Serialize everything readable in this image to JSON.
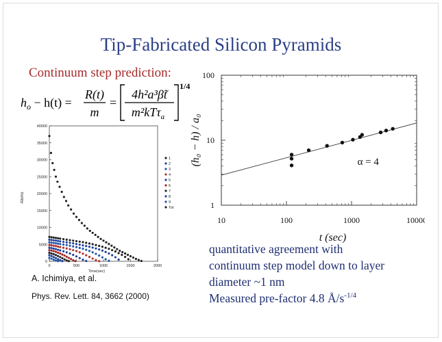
{
  "slide": {
    "title": "Tip-Fabricated Silicon Pyramids",
    "subtitle": "Continuum step prediction:",
    "citation_authors": "A. Ichimiya, et al.",
    "citation_journal": "Phys. Rev. Lett. 84, 3662 (2000)",
    "notes": [
      "quantitative agreement with",
      "continuum step model down to layer",
      "diameter ~1 nm"
    ],
    "prefactor_text": "Measured pre-factor 4.8 Å/s",
    "prefactor_exponent": "-1/4"
  },
  "formula": {
    "lhs": "h",
    "lhs_sub": "o",
    "lhs_rest": " − h(t) =",
    "frac1_num": "R(t)",
    "frac1_den": "m",
    "eq": "=",
    "frac2_num": "4h²a³β̃t",
    "frac2_den": "m²kTτ",
    "frac2_den_sub": "a",
    "exponent": "1/4"
  },
  "chart_data": [
    {
      "type": "scatter",
      "title": "",
      "xlabel": "Time(sec)",
      "ylabel": "Atoms",
      "xlim": [
        0,
        2000
      ],
      "ylim": [
        0,
        40000
      ],
      "x_ticks": [
        "0",
        "500",
        "1000",
        "1500",
        "2000"
      ],
      "y_ticks": [
        "0",
        "5000",
        "10000",
        "15000",
        "20000",
        "25000",
        "30000",
        "35000",
        "40000"
      ],
      "legend": [
        "1",
        "2",
        "3",
        "4",
        "5",
        "6",
        "7",
        "8",
        "9",
        "Tot"
      ],
      "legend_colors": [
        "#222222",
        "#1f3f9a",
        "#2255aa",
        "#b03030",
        "#1f3f9a",
        "#a02828",
        "#222222",
        "#1f3f9a",
        "#2255aa",
        "#222222"
      ],
      "legend_placement": "right",
      "series": [
        {
          "name": "Tot",
          "color": "#222222",
          "x": [
            0,
            30,
            60,
            90,
            120,
            150,
            190,
            230,
            270,
            310,
            350,
            400,
            450,
            500,
            550,
            600,
            650,
            700,
            750,
            800,
            850,
            900,
            950,
            1000,
            1050,
            1100,
            1150,
            1200,
            1250,
            1300,
            1350,
            1400,
            1450,
            1500,
            1550,
            1600,
            1650,
            1700
          ],
          "y": [
            37000,
            32000,
            29000,
            27000,
            25000,
            23500,
            22000,
            20500,
            19000,
            17800,
            16500,
            15300,
            14100,
            13100,
            12200,
            11300,
            10500,
            9700,
            9000,
            8400,
            7800,
            7200,
            6600,
            6100,
            5600,
            5100,
            4600,
            4100,
            3600,
            3100,
            2700,
            2300,
            1900,
            1500,
            1100,
            700,
            400,
            100
          ]
        },
        {
          "name": "1",
          "color": "#222222",
          "x": [
            0,
            40,
            80,
            120,
            160,
            200,
            260,
            320,
            380,
            440,
            500,
            560,
            620,
            680,
            740,
            800,
            860,
            920,
            980,
            1040,
            1100,
            1160,
            1220,
            1280,
            1340,
            1400,
            1460
          ],
          "y": [
            7200,
            7100,
            7000,
            6900,
            6800,
            6700,
            6550,
            6400,
            6250,
            6100,
            5950,
            5800,
            5650,
            5450,
            5250,
            5050,
            4800,
            4550,
            4300,
            4000,
            3700,
            3300,
            2900,
            2400,
            1900,
            1300,
            600
          ]
        },
        {
          "name": "2",
          "color": "#1f3f9a",
          "x": [
            0,
            40,
            80,
            120,
            160,
            200,
            260,
            320,
            380,
            440,
            500,
            560,
            620,
            680,
            740,
            800,
            860,
            920,
            980,
            1040,
            1100,
            1160,
            1220,
            1280
          ],
          "y": [
            6400,
            6300,
            6200,
            6100,
            6000,
            5900,
            5750,
            5600,
            5450,
            5300,
            5100,
            4900,
            4700,
            4500,
            4300,
            4050,
            3800,
            3500,
            3150,
            2750,
            2300,
            1800,
            1200,
            500
          ]
        },
        {
          "name": "3",
          "color": "#2255aa",
          "x": [
            0,
            40,
            80,
            120,
            160,
            200,
            260,
            320,
            380,
            440,
            500,
            560,
            620,
            680,
            740,
            800,
            860,
            920,
            980,
            1040,
            1100
          ],
          "y": [
            5600,
            5500,
            5400,
            5300,
            5200,
            5100,
            4950,
            4800,
            4600,
            4400,
            4200,
            3950,
            3700,
            3400,
            3050,
            2650,
            2200,
            1700,
            1150,
            600,
            150
          ]
        },
        {
          "name": "4",
          "color": "#b03030",
          "x": [
            0,
            40,
            80,
            120,
            160,
            200,
            260,
            320,
            380,
            440,
            500,
            560,
            620,
            680,
            740,
            800,
            860,
            920
          ],
          "y": [
            4800,
            4700,
            4600,
            4500,
            4350,
            4200,
            4000,
            3800,
            3550,
            3300,
            3000,
            2650,
            2250,
            1800,
            1300,
            800,
            350,
            50
          ]
        },
        {
          "name": "5",
          "color": "#1f3f9a",
          "x": [
            0,
            40,
            80,
            120,
            160,
            200,
            260,
            320,
            380,
            440,
            500,
            560,
            620,
            680
          ],
          "y": [
            4000,
            3900,
            3750,
            3600,
            3400,
            3200,
            2950,
            2650,
            2300,
            1900,
            1450,
            950,
            450,
            100
          ]
        },
        {
          "name": "6",
          "color": "#a02828",
          "x": [
            0,
            40,
            80,
            120,
            160,
            200,
            240,
            280,
            320,
            360,
            400,
            440,
            480
          ],
          "y": [
            3300,
            3150,
            3000,
            2800,
            2550,
            2300,
            2000,
            1700,
            1350,
            1000,
            650,
            300,
            50
          ]
        },
        {
          "name": "7",
          "color": "#222222",
          "x": [
            0,
            40,
            80,
            120,
            160,
            200,
            240,
            280,
            320,
            360
          ],
          "y": [
            2500,
            2300,
            2100,
            1850,
            1550,
            1250,
            900,
            550,
            250,
            50
          ]
        },
        {
          "name": "8",
          "color": "#1f3f9a",
          "x": [
            0,
            40,
            80,
            120,
            160,
            200,
            240
          ],
          "y": [
            1800,
            1550,
            1250,
            950,
            600,
            300,
            50
          ]
        },
        {
          "name": "9",
          "color": "#2255aa",
          "x": [
            0,
            40,
            80,
            120,
            160
          ],
          "y": [
            1000,
            750,
            450,
            200,
            50
          ]
        }
      ]
    },
    {
      "type": "scatter",
      "title": "",
      "xlabel": "t  (sec)",
      "ylabel": "(h₀ − h) / a₀",
      "x_scale": "log",
      "y_scale": "log",
      "xlim": [
        10,
        10000
      ],
      "ylim": [
        1,
        100
      ],
      "x_ticks": [
        "10",
        "100",
        "1000",
        "10000"
      ],
      "y_ticks": [
        "1",
        "10",
        "100"
      ],
      "annotation": "α = 4",
      "series": [
        {
          "name": "",
          "x": [
            120,
            120,
            120,
            220,
            420,
            720,
            1050,
            1350,
            1450,
            2800,
            3400,
            4300
          ],
          "y": [
            6.0,
            5.2,
            4.1,
            7.0,
            8.2,
            9.2,
            10.2,
            11.2,
            12.1,
            13.2,
            14.1,
            15.0
          ]
        },
        {
          "name": "",
          "type": "line",
          "x": [
            10,
            10000
          ],
          "y": [
            2.9,
            18.4
          ]
        }
      ]
    }
  ]
}
